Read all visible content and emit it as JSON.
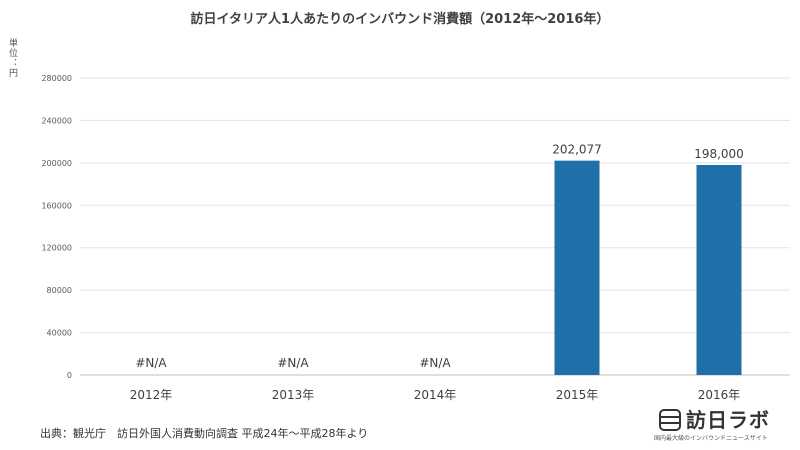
{
  "chart_data": {
    "type": "bar",
    "title": "訪日イタリア人1人あたりのインバウンド消費額（2012年～2016年）",
    "unit_label": "単位：円",
    "categories": [
      "2012年",
      "2013年",
      "2014年",
      "2015年",
      "2016年"
    ],
    "values": [
      null,
      null,
      null,
      202077,
      198000
    ],
    "data_labels": [
      "#N/A",
      "#N/A",
      "#N/A",
      "202,077",
      "198,000"
    ],
    "yticks": [
      "0",
      "40000",
      "80000",
      "120000",
      "160000",
      "200000",
      "240000",
      "280000"
    ],
    "ylim": [
      0,
      280000
    ],
    "grid": true,
    "bar_color": "#1f6fa8"
  },
  "footer": {
    "source": "出典：観光庁　訪日外国人消費動向調査 平成24年～平成28年より",
    "logo_name": "訪日ラボ",
    "logo_tagline": "国内最大級のインバウンドニュースサイト"
  }
}
